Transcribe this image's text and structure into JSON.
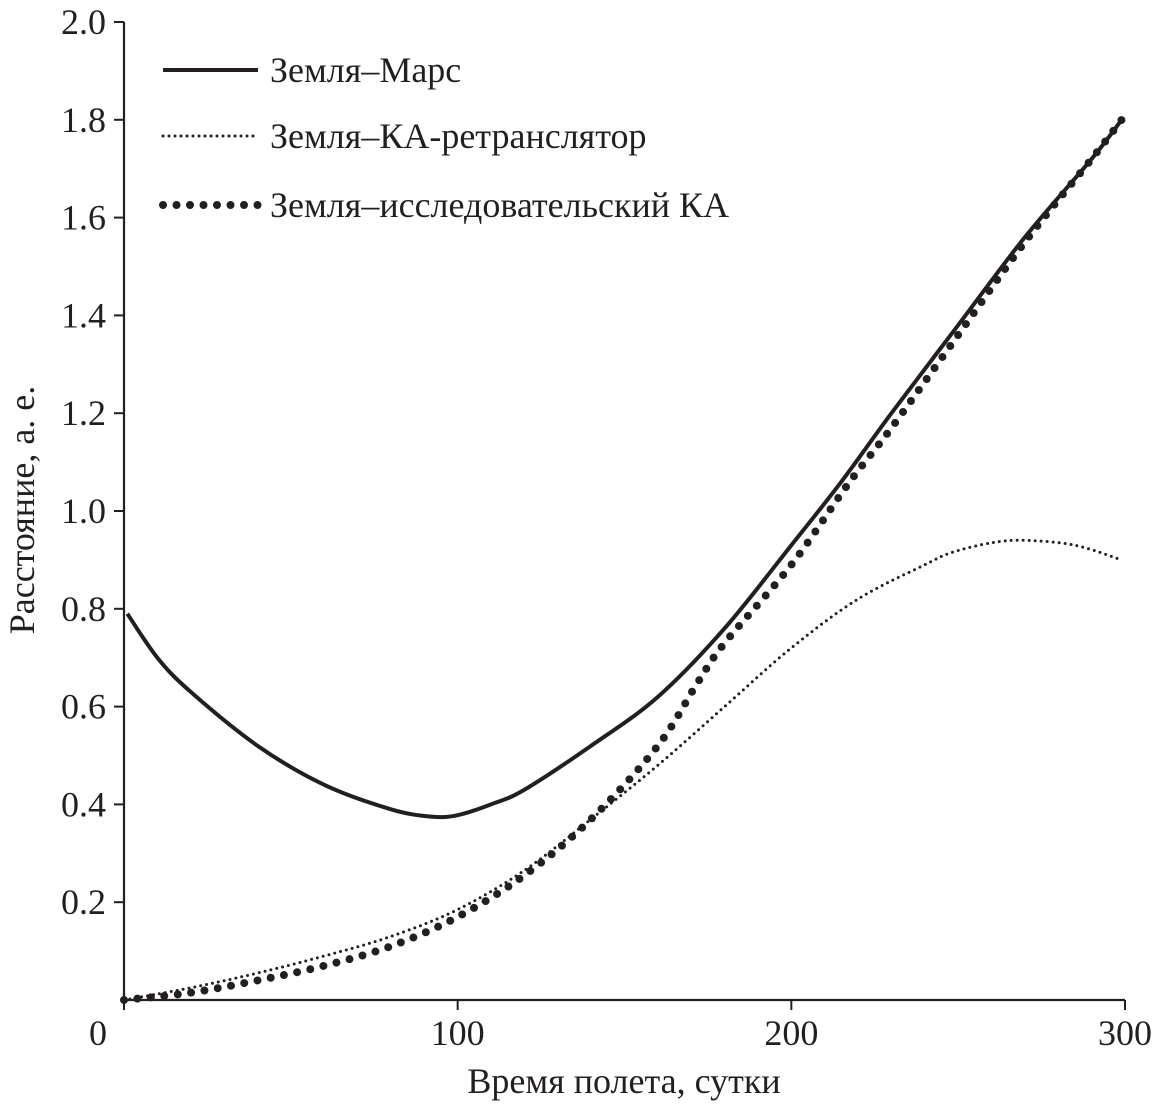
{
  "chart_data": {
    "type": "line",
    "title": "",
    "xlabel": "Время полета, сутки",
    "ylabel": "Расстояние, а. е.",
    "xlim": [
      0,
      300
    ],
    "ylim": [
      0,
      2.0
    ],
    "xticks": [
      0,
      100,
      200,
      300
    ],
    "xtick_labels": [
      "0",
      "100",
      "200",
      "300"
    ],
    "yticks": [
      0.2,
      0.4,
      0.6,
      0.8,
      1.0,
      1.2,
      1.4,
      1.6,
      1.8,
      2.0
    ],
    "ytick_labels": [
      "0.2",
      "0.4",
      "0.6",
      "0.8",
      "1.0",
      "1.2",
      "1.4",
      "1.6",
      "1.8",
      "2.0"
    ],
    "grid": false,
    "legend_position": "top-left",
    "colors": {
      "line": "#231f20"
    },
    "series": [
      {
        "name": "Земля–Марс",
        "style": "solid",
        "x": [
          1,
          10,
          20,
          40,
          60,
          80,
          92,
          100,
          110,
          120,
          140,
          160,
          180,
          200,
          215,
          230,
          250,
          270,
          290,
          299
        ],
        "y": [
          0.79,
          0.7,
          0.63,
          0.52,
          0.44,
          0.39,
          0.375,
          0.378,
          0.4,
          0.43,
          0.52,
          0.62,
          0.76,
          0.93,
          1.06,
          1.2,
          1.38,
          1.56,
          1.72,
          1.8
        ]
      },
      {
        "name": "Земля–КА-ретранслятор",
        "style": "fine-dotted",
        "x": [
          0,
          20,
          40,
          60,
          80,
          100,
          120,
          140,
          160,
          180,
          200,
          220,
          240,
          248,
          260,
          270,
          285,
          299
        ],
        "y": [
          0,
          0.025,
          0.055,
          0.09,
          0.13,
          0.185,
          0.265,
          0.37,
          0.48,
          0.6,
          0.72,
          0.82,
          0.89,
          0.915,
          0.935,
          0.94,
          0.93,
          0.9
        ]
      },
      {
        "name": "Земля–исследовательский КА",
        "style": "large-dotted",
        "x": [
          0,
          20,
          40,
          60,
          80,
          100,
          120,
          140,
          160,
          172,
          180,
          200,
          217,
          230,
          250,
          270,
          290,
          299
        ],
        "y": [
          0,
          0.015,
          0.04,
          0.07,
          0.11,
          0.17,
          0.255,
          0.37,
          0.52,
          0.65,
          0.73,
          0.89,
          1.055,
          1.17,
          1.36,
          1.55,
          1.72,
          1.8
        ]
      }
    ]
  }
}
